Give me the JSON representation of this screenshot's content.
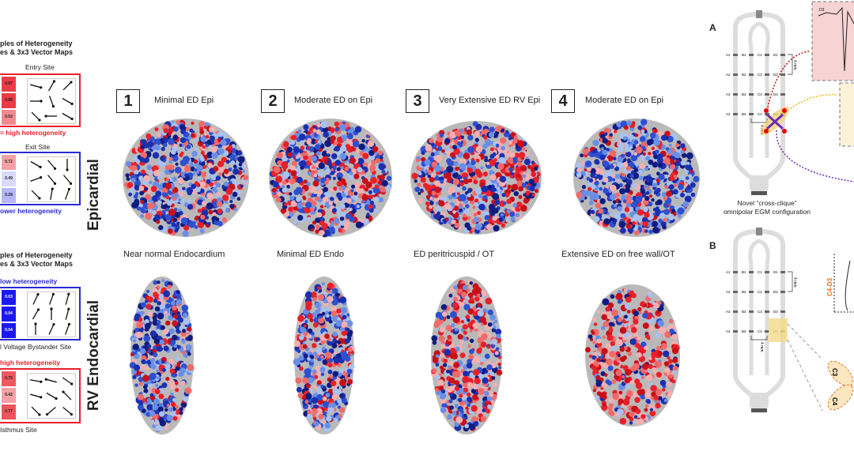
{
  "left": {
    "top": {
      "heading1": "ples of Heterogeneity",
      "heading2": "es & 3x3 Vector Maps",
      "entry": {
        "label": "Entry Site",
        "values": [
          "0.87",
          "0.88",
          "0.53"
        ],
        "angles": [
          -15,
          60,
          45,
          0,
          -70,
          -30,
          -45,
          180,
          -30
        ],
        "note": "= high heterogeneity",
        "color": "#e8202a"
      },
      "exit": {
        "label": "Exit Site",
        "values": [
          "0.72",
          "0.49",
          "0.28"
        ],
        "angles": [
          -30,
          -50,
          -90,
          20,
          -50,
          -50,
          -45,
          80,
          70
        ],
        "note": "ower heterogeneity",
        "color": "#2a2ad0"
      }
    },
    "bottom": {
      "heading1": "ples of Heterogeneity",
      "heading2": "es & 3x3 Vector Maps",
      "bystander": {
        "note": "low heterogeneity",
        "values": [
          "0.03",
          "0.04",
          "0.04"
        ],
        "angles": [
          65,
          70,
          75,
          60,
          90,
          75,
          90,
          65,
          70
        ],
        "label": "l Voltage Bystander Site",
        "color": "#2a2ad0"
      },
      "isthmus": {
        "note": "high heterogeneity",
        "values": [
          "0.75",
          "0.42",
          "0.77"
        ],
        "angles": [
          -10,
          165,
          -35,
          -15,
          -30,
          135,
          -45,
          -140,
          -40
        ],
        "label": "Isthmus Site",
        "color": "#e8202a"
      }
    }
  },
  "row_labels": {
    "epi": "Epicardial",
    "endo": "RV Endocardial"
  },
  "panels": [
    {
      "number": "1",
      "epi_title": "Minimal ED Epi",
      "endo_title": "Near normal Endocardium"
    },
    {
      "number": "2",
      "epi_title": "Moderate ED on Epi",
      "endo_title": "Minimal ED Endo"
    },
    {
      "number": "3",
      "epi_title": "Very Extensive ED RV Epi",
      "endo_title": "ED peritricuspid / OT"
    },
    {
      "number": "4",
      "epi_title": "Moderate ED on Epi",
      "endo_title": "Extensive ED on free wall/OT"
    }
  ],
  "right": {
    "a": {
      "letter": "A",
      "caption1": "Novel “cross-clique”",
      "caption2": "omnipolar EGM configuration",
      "egm_label": "D3"
    },
    "b": {
      "letter": "B",
      "axis_label": "C4-D3",
      "zoom_labels": [
        "C3",
        "C4"
      ]
    },
    "electrodes": [
      "A",
      "B",
      "C",
      "D"
    ],
    "spacing": "4 mm"
  },
  "colors": {
    "red": "#e8202a",
    "blue": "#1a2fb0",
    "gray": "#b9b9b9"
  }
}
